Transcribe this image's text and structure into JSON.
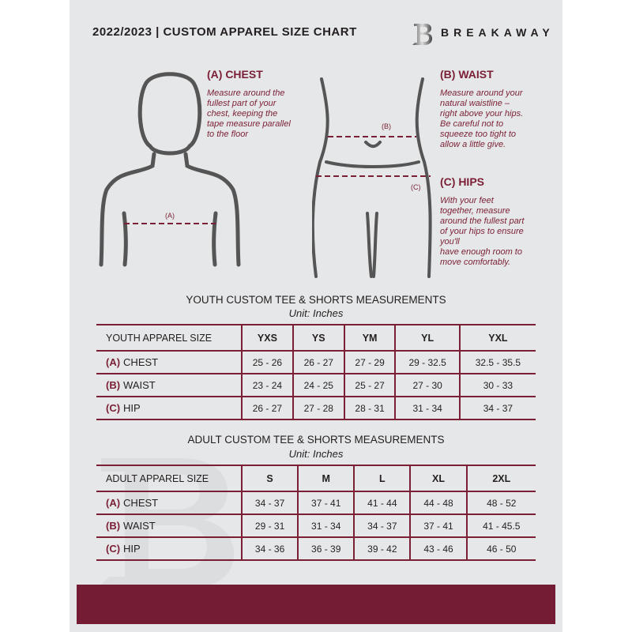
{
  "header": {
    "title": "2022/2023  |  CUSTOM APPAREL SIZE CHART",
    "brand": "BREAKAWAY"
  },
  "colors": {
    "accent": "#7a1f35",
    "panel": "#e6e7e8",
    "band": "#731c33"
  },
  "chest": {
    "heading": "(A) CHEST",
    "lines": [
      "Measure around the",
      "fullest part of your",
      "chest, keeping the",
      "tape measure parallel",
      "to the floor"
    ],
    "marker": "(A)"
  },
  "waist": {
    "heading": "(B) WAIST",
    "lines": [
      "Measure around your",
      "natural waistline –",
      "right above your hips.",
      "Be careful not to",
      "squeeze too tight to",
      "allow a little give."
    ],
    "marker": "(B)"
  },
  "hips": {
    "heading": "(C) HIPS",
    "lines": [
      "With your feet",
      "together, measure",
      "around the fullest part",
      "of your hips to ensure",
      "you'll",
      "have enough room to",
      "move comfortably."
    ],
    "marker": "(C)"
  },
  "youth": {
    "title": "YOUTH CUSTOM TEE & SHORTS MEASUREMENTS",
    "unit": "Unit: Inches",
    "header": [
      "YOUTH APPAREL SIZE",
      "YXS",
      "YS",
      "YM",
      "YL",
      "YXL"
    ],
    "rows": [
      {
        "tag": "(A)",
        "label": "CHEST",
        "values": [
          "25 - 26",
          "26 - 27",
          "27 - 29",
          "29 - 32.5",
          "32.5 - 35.5"
        ]
      },
      {
        "tag": "(B)",
        "label": "WAIST",
        "values": [
          "23 - 24",
          "24 - 25",
          "25 - 27",
          "27 - 30",
          "30 - 33"
        ]
      },
      {
        "tag": "(C)",
        "label": "HIP",
        "values": [
          "26 - 27",
          "27 - 28",
          "28 - 31",
          "31 - 34",
          "34 - 37"
        ]
      }
    ]
  },
  "adult": {
    "title": "ADULT CUSTOM TEE & SHORTS MEASUREMENTS",
    "unit": "Unit: Inches",
    "header": [
      "ADULT APPAREL SIZE",
      "S",
      "M",
      "L",
      "XL",
      "2XL"
    ],
    "rows": [
      {
        "tag": "(A)",
        "label": "CHEST",
        "values": [
          "34 - 37",
          "37 - 41",
          "41 - 44",
          "44 - 48",
          "48 - 52"
        ]
      },
      {
        "tag": "(B)",
        "label": "WAIST",
        "values": [
          "29 - 31",
          "31 - 34",
          "34 - 37",
          "37 - 41",
          "41 - 45.5"
        ]
      },
      {
        "tag": "(C)",
        "label": "HIP",
        "values": [
          "34 - 36",
          "36 - 39",
          "39 - 42",
          "43 - 46",
          "46 - 50"
        ]
      }
    ]
  }
}
